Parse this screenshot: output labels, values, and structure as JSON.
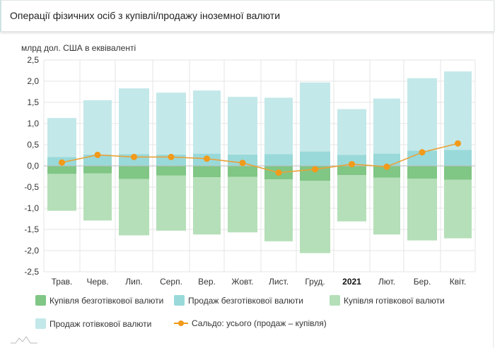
{
  "header": {
    "title": "Операції фізичних осіб з купівлі/продажу іноземної валюти"
  },
  "chart_data": {
    "type": "bar",
    "title": "",
    "ylabel": "млрд дол. США в еквіваленті",
    "ylim": [
      -2.5,
      2.5
    ],
    "yticks": [
      "2,5",
      "2,0",
      "1,5",
      "1,0",
      "0,5",
      "0,0",
      "-0,5",
      "-1,0",
      "-1,5",
      "-2,0",
      "-2,5"
    ],
    "ytick_values": [
      2.5,
      2.0,
      1.5,
      1.0,
      0.5,
      0.0,
      -0.5,
      -1.0,
      -1.5,
      -2.0,
      -2.5
    ],
    "grid": true,
    "stacked": true,
    "legend_position": "bottom",
    "categories": [
      "Трав.",
      "Черв.",
      "Лип.",
      "Серп.",
      "Вер.",
      "Жовт.",
      "Лист.",
      "Груд.",
      "2021",
      "Лют.",
      "Бер.",
      "Квіт."
    ],
    "bold_category": "2021",
    "series": [
      {
        "name": "Купівля безготівкової валюти",
        "type": "bar",
        "color": "#80c685",
        "values": [
          -0.19,
          -0.18,
          -0.31,
          -0.23,
          -0.27,
          -0.26,
          -0.32,
          -0.35,
          -0.22,
          -0.28,
          -0.3,
          -0.33
        ]
      },
      {
        "name": "Продаж безготівкової валюти",
        "type": "bar",
        "color": "#99d9d9",
        "values": [
          0.21,
          0.27,
          0.28,
          0.27,
          0.29,
          0.27,
          0.28,
          0.34,
          0.26,
          0.29,
          0.36,
          0.38
        ]
      },
      {
        "name": "Купівля готівкової валюти",
        "type": "bar",
        "color": "#b5dfb8",
        "values": [
          -0.87,
          -1.11,
          -1.33,
          -1.3,
          -1.35,
          -1.31,
          -1.46,
          -1.71,
          -1.09,
          -1.34,
          -1.46,
          -1.38
        ]
      },
      {
        "name": "Продаж готівкової валюти",
        "type": "bar",
        "color": "#c3e8e9",
        "values": [
          0.92,
          1.28,
          1.55,
          1.46,
          1.49,
          1.36,
          1.33,
          1.63,
          1.08,
          1.3,
          1.71,
          1.85
        ]
      },
      {
        "name": "Сальдо: усього (продаж – купівля)",
        "type": "line",
        "color": "#f29a1a",
        "values": [
          0.08,
          0.26,
          0.21,
          0.21,
          0.17,
          0.07,
          -0.16,
          -0.08,
          0.04,
          -0.02,
          0.32,
          0.53
        ]
      }
    ]
  }
}
